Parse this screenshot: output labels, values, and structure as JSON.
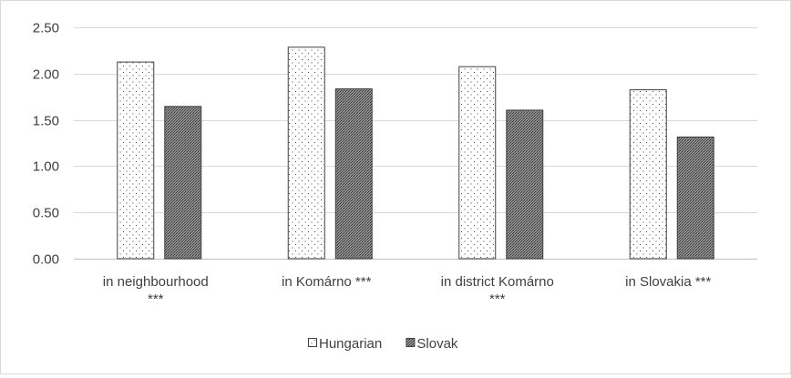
{
  "chart_data": {
    "type": "bar",
    "categories": [
      [
        "in neighbourhood",
        "***"
      ],
      [
        "in Komárno ***"
      ],
      [
        "in district Komárno",
        "***"
      ],
      [
        "in Slovakia ***"
      ]
    ],
    "series": [
      {
        "name": "Hungarian",
        "values": [
          2.13,
          2.29,
          2.08,
          1.83
        ],
        "pattern": "dots",
        "color": "#ffffff"
      },
      {
        "name": "Slovak",
        "values": [
          1.65,
          1.84,
          1.61,
          1.32
        ],
        "pattern": "crosshatch",
        "color": "#7f7f7f"
      }
    ],
    "ylim": [
      0,
      2.5
    ],
    "yticks": [
      "0.00",
      "0.50",
      "1.00",
      "1.50",
      "2.00",
      "2.50"
    ],
    "grid": true,
    "legend_position": "bottom"
  }
}
